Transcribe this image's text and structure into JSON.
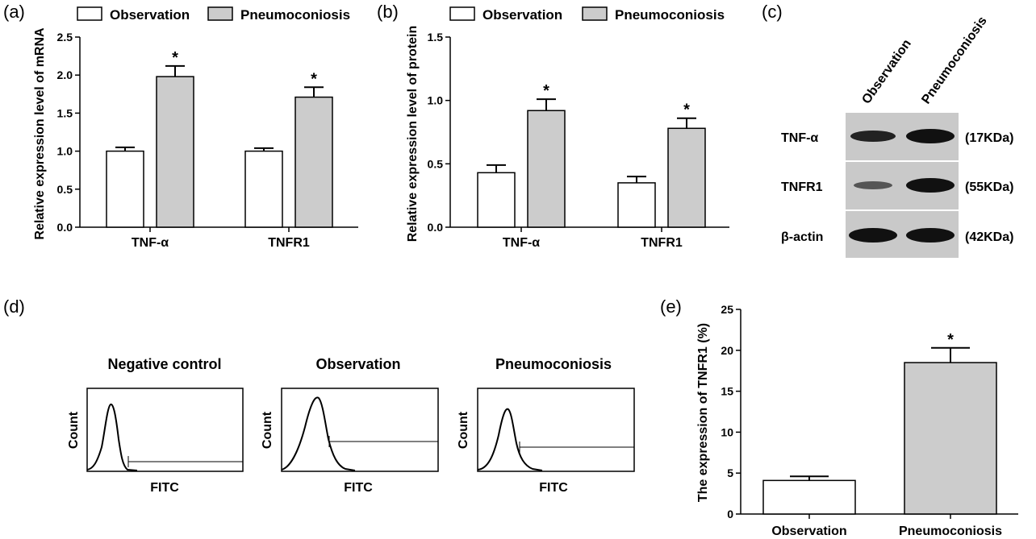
{
  "chart_data": [
    {
      "panel": "(a)",
      "type": "bar",
      "categories": [
        "TNF-α",
        "TNFR1"
      ],
      "series": [
        {
          "name": "Observation",
          "values": [
            1.0,
            1.0
          ],
          "errors": [
            0.05,
            0.04
          ],
          "color": "#ffffff"
        },
        {
          "name": "Pneumoconiosis",
          "values": [
            1.98,
            1.71
          ],
          "errors": [
            0.14,
            0.13
          ],
          "color": "#cccccc"
        }
      ],
      "significance": [
        "*",
        "*"
      ],
      "ylabel": "Relative expression level of mRNA",
      "ylim": [
        0,
        2.5
      ],
      "yticks": [
        "0.0",
        "0.5",
        "1.0",
        "1.5",
        "2.0",
        "2.5"
      ],
      "legend": "top",
      "grid": false
    },
    {
      "panel": "(b)",
      "type": "bar",
      "categories": [
        "TNF-α",
        "TNFR1"
      ],
      "series": [
        {
          "name": "Observation",
          "values": [
            0.43,
            0.35
          ],
          "errors": [
            0.06,
            0.05
          ],
          "color": "#ffffff"
        },
        {
          "name": "Pneumoconiosis",
          "values": [
            0.92,
            0.78
          ],
          "errors": [
            0.09,
            0.08
          ],
          "color": "#cccccc"
        }
      ],
      "significance": [
        "*",
        "*"
      ],
      "ylabel": "Relative expression level of protein",
      "ylim": [
        0,
        1.5
      ],
      "yticks": [
        "0.0",
        "0.5",
        "1.0",
        "1.5"
      ],
      "legend": "top",
      "grid": false
    },
    {
      "panel": "(e)",
      "type": "bar",
      "categories": [
        "Observation",
        "Pneumoconiosis"
      ],
      "series": [
        {
          "values": [
            4.1,
            18.5
          ],
          "errors": [
            0.5,
            1.8
          ]
        }
      ],
      "bar_colors": [
        "#ffffff",
        "#cccccc"
      ],
      "significance": [
        "",
        "*"
      ],
      "ylabel": "The expression of TNFR1 (%)",
      "ylim": [
        0,
        25
      ],
      "yticks": [
        "0",
        "5",
        "10",
        "15",
        "20",
        "25"
      ],
      "grid": false
    }
  ],
  "panel_c": {
    "panel": "(c)",
    "lanes": [
      "Observation",
      "Pneumoconiosis"
    ],
    "rows": [
      {
        "protein": "TNF-α",
        "weight": "(17KDa)",
        "intensity": [
          0.55,
          0.9
        ]
      },
      {
        "protein": "TNFR1",
        "weight": "(55KDa)",
        "intensity": [
          0.3,
          0.9
        ]
      },
      {
        "protein": "β-actin",
        "weight": "(42KDa)",
        "intensity": [
          0.9,
          0.9
        ]
      }
    ]
  },
  "panel_d": {
    "panel": "(d)",
    "xlabel": "FITC",
    "ylabel": "Count",
    "histograms": [
      {
        "title": "Negative control",
        "gate_level": 0.15
      },
      {
        "title": "Observation",
        "gate_level": 0.45
      },
      {
        "title": "Pneumoconiosis",
        "gate_level": 0.35
      }
    ]
  }
}
